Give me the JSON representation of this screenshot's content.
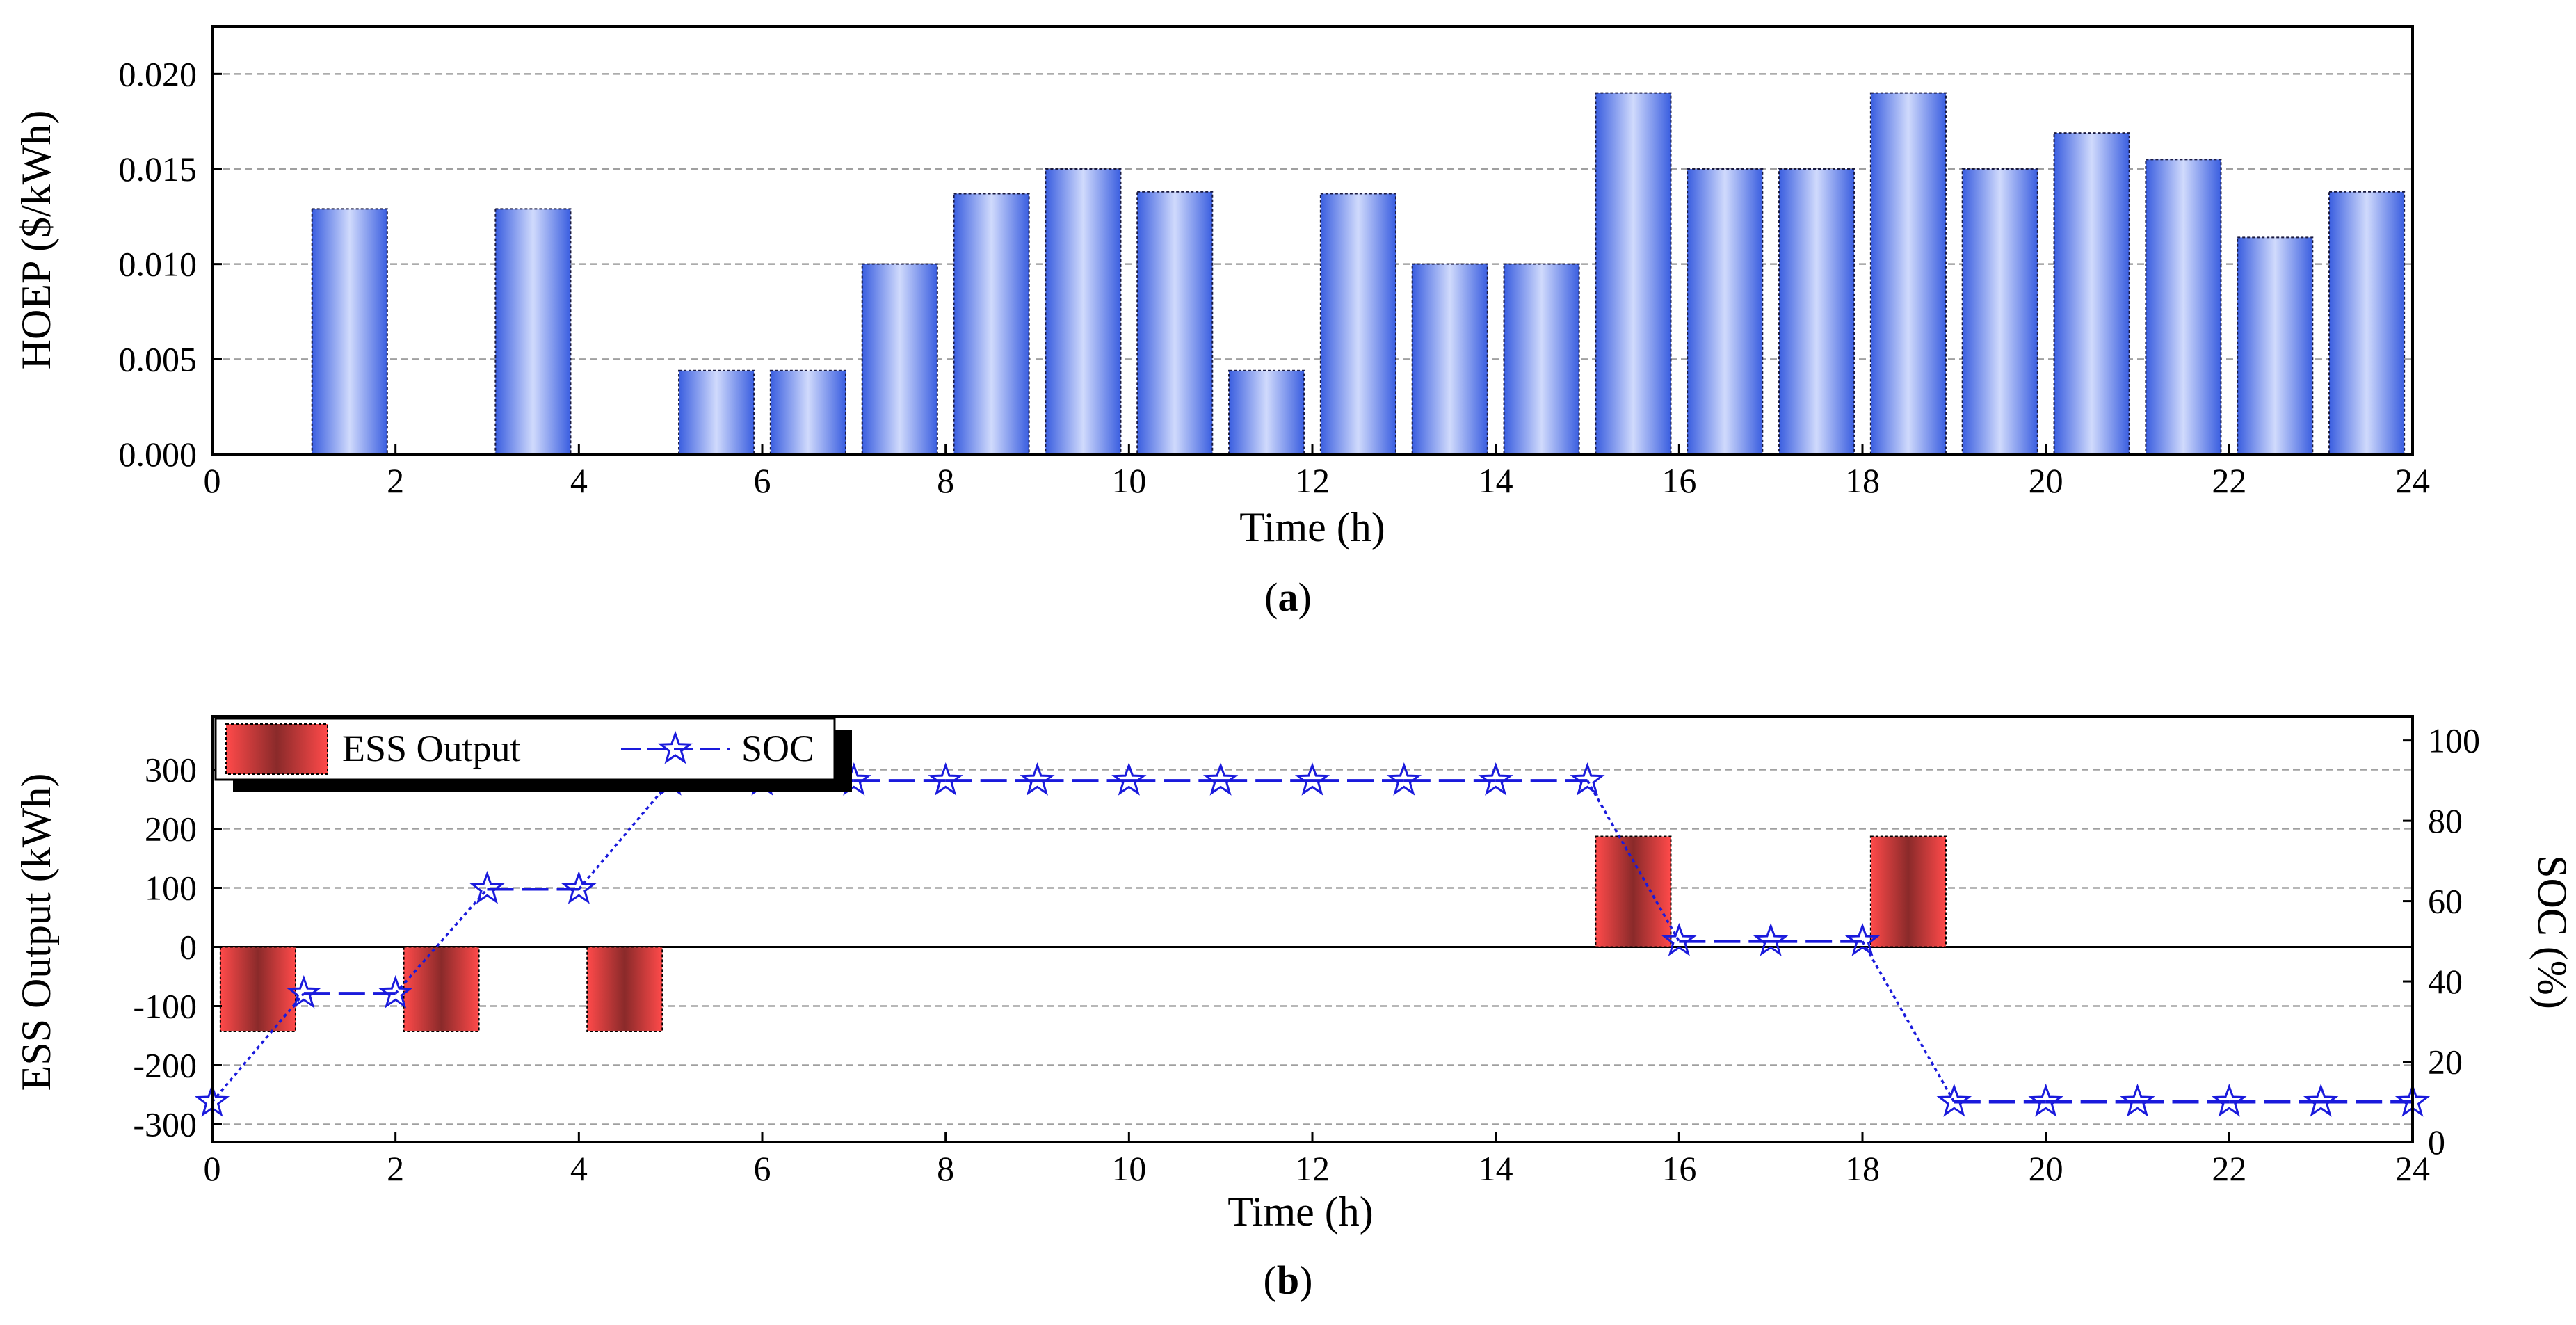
{
  "chart_data": [
    {
      "type": "bar",
      "title": "",
      "caption": {
        "open": "(",
        "letter": "a",
        "close": ")"
      },
      "xlabel": "Time (h)",
      "ylabel": "HOEP ($/kWh)",
      "xlim": [
        0,
        24
      ],
      "ylim": [
        0,
        0.0225
      ],
      "xticks": [
        "0",
        "2",
        "4",
        "6",
        "8",
        "10",
        "12",
        "14",
        "16",
        "18",
        "20",
        "22",
        "24"
      ],
      "yticks": [
        "0.000",
        "0.005",
        "0.010",
        "0.015",
        "0.020"
      ],
      "grid": true,
      "categories": [
        "1",
        "2",
        "3",
        "4",
        "5",
        "6",
        "7",
        "8",
        "9",
        "10",
        "11",
        "12",
        "13",
        "14",
        "15",
        "16",
        "17",
        "18",
        "19",
        "20",
        "21",
        "22",
        "23",
        "24"
      ],
      "values": [
        0,
        0.0129,
        0,
        0.0129,
        0,
        0.0044,
        0.0044,
        0.01,
        0.0137,
        0.015,
        0.0138,
        0.0044,
        0.0137,
        0.01,
        0.01,
        0.019,
        0.015,
        0.015,
        0.019,
        0.015,
        0.0169,
        0.0155,
        0.0114,
        0.0138
      ],
      "colors": {
        "bar": "#4a6ee8",
        "bar_light": "#c8d4fb",
        "grid": "#a0a0a0"
      }
    },
    {
      "type": "bar+line",
      "title": "",
      "caption": {
        "open": "(",
        "letter": "b",
        "close": ")"
      },
      "xlabel": "Time (h)",
      "ylabel": "ESS Output (kWh)",
      "y2label": "SOC (%)",
      "xlim": [
        0,
        24
      ],
      "ylim": [
        -330,
        390
      ],
      "y2lim": [
        0,
        106
      ],
      "xticks": [
        "0",
        "2",
        "4",
        "6",
        "8",
        "10",
        "12",
        "14",
        "16",
        "18",
        "20",
        "22",
        "24"
      ],
      "yticks": [
        "300",
        "200",
        "100",
        "0",
        "-100",
        "-200",
        "-300"
      ],
      "y2ticks": [
        "100",
        "80",
        "60",
        "40",
        "20",
        "0"
      ],
      "grid": true,
      "legend": {
        "placement": "top-left",
        "entries": [
          "ESS Output",
          "SOC"
        ]
      },
      "ess_output": {
        "name": "ESS Output",
        "categories": [
          "1",
          "2",
          "3",
          "4",
          "5",
          "6",
          "7",
          "8",
          "9",
          "10",
          "11",
          "12",
          "13",
          "14",
          "15",
          "16",
          "17",
          "18",
          "19",
          "20",
          "21",
          "22",
          "23",
          "24"
        ],
        "values": [
          -143,
          0,
          -143,
          0,
          -143,
          0,
          0,
          0,
          0,
          0,
          0,
          0,
          0,
          0,
          0,
          187,
          0,
          0,
          187,
          0,
          0,
          0,
          0,
          0
        ]
      },
      "soc": {
        "name": "SOC",
        "x": [
          0,
          1,
          2,
          3,
          4,
          5,
          6,
          7,
          8,
          9,
          10,
          11,
          12,
          13,
          14,
          15,
          16,
          17,
          18,
          19,
          20,
          21,
          22,
          23,
          24
        ],
        "values": [
          10,
          37,
          37,
          63,
          63,
          90,
          90,
          90,
          90,
          90,
          90,
          90,
          90,
          90,
          90,
          90,
          50,
          50,
          50,
          10,
          10,
          10,
          10,
          10,
          10
        ]
      },
      "colors": {
        "bar": "#f04545",
        "bar_dark": "#8a2a2a",
        "line": "#1a1adc",
        "grid": "#a0a0a0"
      }
    }
  ]
}
